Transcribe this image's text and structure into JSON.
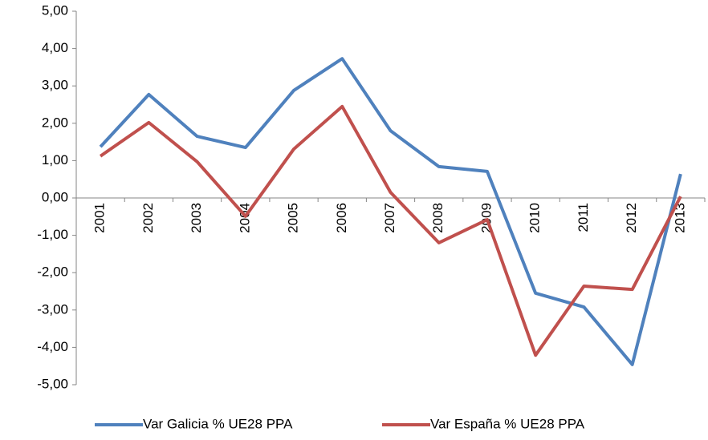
{
  "chart_data": {
    "type": "line",
    "categories": [
      "2001",
      "2002",
      "2003",
      "2004",
      "2005",
      "2006",
      "2007",
      "2008",
      "2009",
      "2010",
      "2011",
      "2012",
      "2013"
    ],
    "series": [
      {
        "name": "Var Galicia % UE28 PPA",
        "color": "#4f81bd",
        "values": [
          1.37,
          2.77,
          1.65,
          1.35,
          2.88,
          3.73,
          1.8,
          0.84,
          0.71,
          -2.55,
          -2.92,
          -4.46,
          0.64
        ]
      },
      {
        "name": "Var España % UE28 PPA",
        "color": "#c0504d",
        "values": [
          1.12,
          2.02,
          0.97,
          -0.49,
          1.31,
          2.45,
          0.15,
          -1.2,
          -0.58,
          -4.21,
          -2.36,
          -2.45,
          0.04
        ]
      }
    ],
    "ylim": [
      -5,
      5
    ],
    "yticks": [
      {
        "value": -5,
        "label": "-5,00"
      },
      {
        "value": -4,
        "label": "-4,00"
      },
      {
        "value": -3,
        "label": "-3,00"
      },
      {
        "value": -2,
        "label": "-2,00"
      },
      {
        "value": -1,
        "label": "-1,00"
      },
      {
        "value": 0,
        "label": "0,00"
      },
      {
        "value": 1,
        "label": "1,00"
      },
      {
        "value": 2,
        "label": "2,00"
      },
      {
        "value": 3,
        "label": "3,00"
      },
      {
        "value": 4,
        "label": "4,00"
      },
      {
        "value": 5,
        "label": "5,00"
      }
    ],
    "grid": false,
    "legend": "bottom"
  }
}
